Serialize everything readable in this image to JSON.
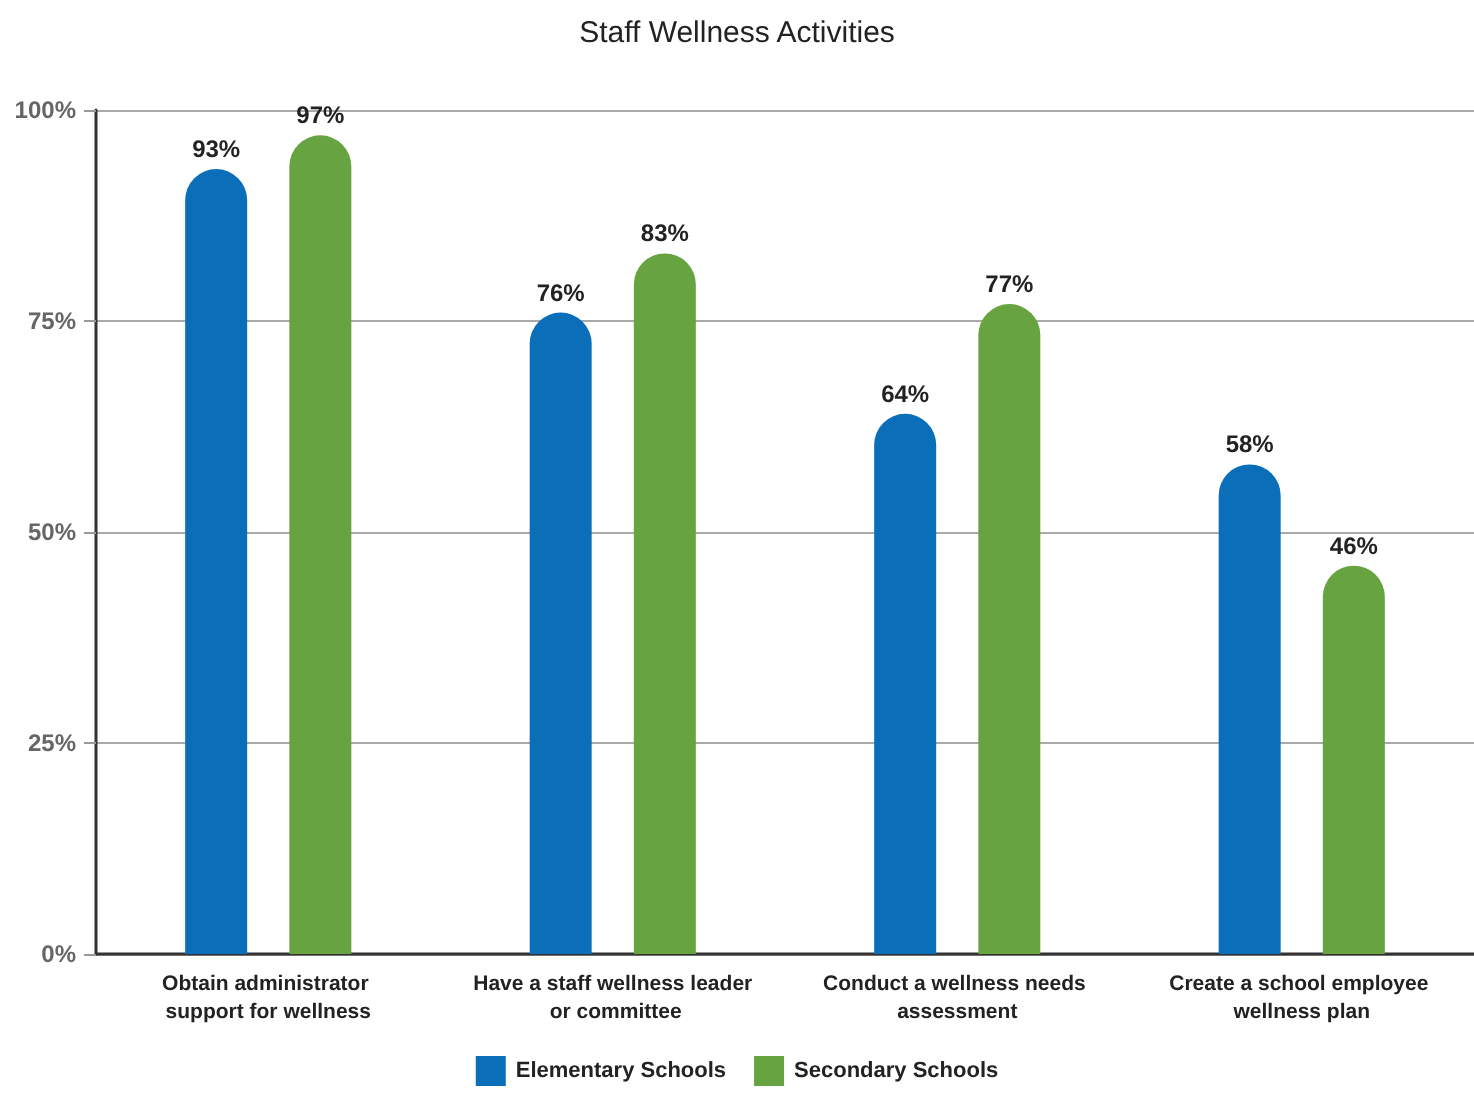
{
  "chart_data": {
    "type": "bar",
    "title": "Staff Wellness Activities",
    "categories": [
      "Obtain administrator support for wellness",
      "Have a staff wellness leader or committee",
      "Conduct a wellness needs assessment",
      "Create a school employee wellness plan"
    ],
    "series": [
      {
        "name": "Elementary Schools",
        "color": "#0a6eb8",
        "values": [
          93,
          76,
          64,
          58
        ],
        "value_labels": [
          "93%",
          "76%",
          "64%",
          "58%"
        ]
      },
      {
        "name": "Secondary Schools",
        "color": "#68a342",
        "values": [
          97,
          83,
          77,
          46
        ],
        "value_labels": [
          "97%",
          "83%",
          "77%",
          "46%"
        ]
      }
    ],
    "ylim": [
      0,
      100
    ],
    "yticks": [
      {
        "value": 0,
        "label": "0%"
      },
      {
        "value": 25,
        "label": "25%"
      },
      {
        "value": 50,
        "label": "50%"
      },
      {
        "value": 75,
        "label": "75%"
      },
      {
        "value": 100,
        "label": "100%"
      }
    ],
    "grid": "y",
    "legend": "bottom"
  }
}
